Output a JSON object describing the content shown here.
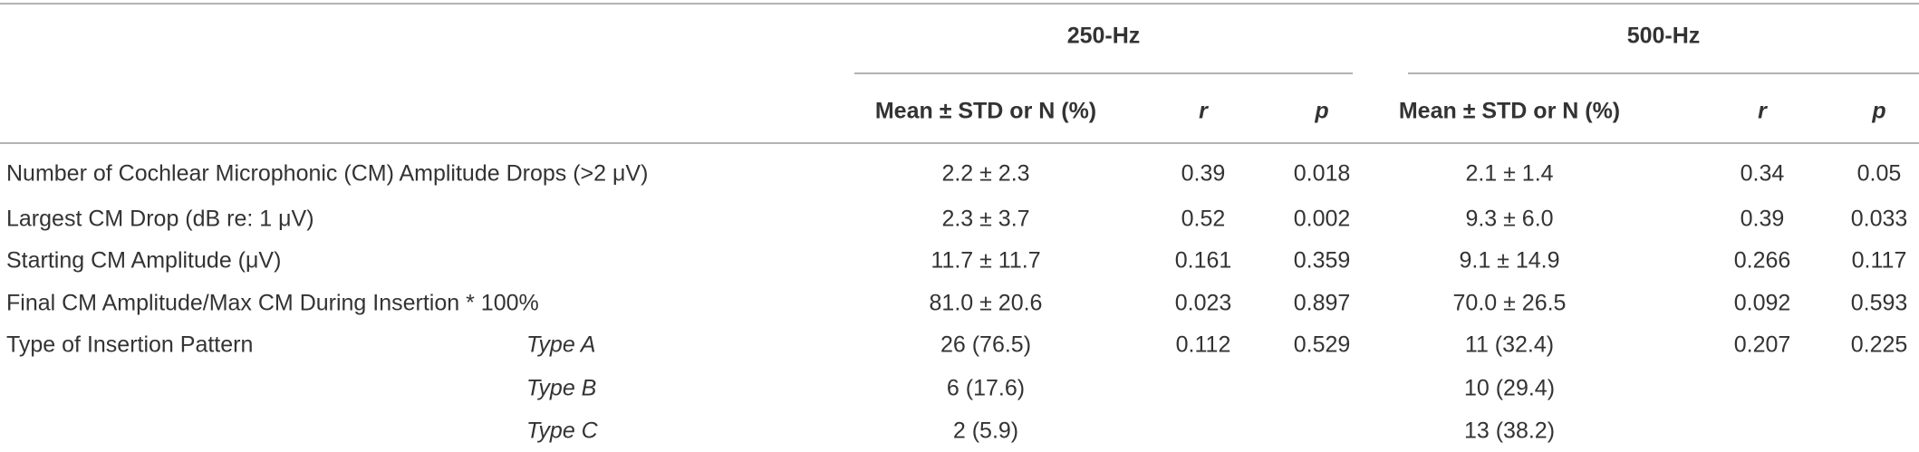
{
  "table": {
    "groups": [
      "250-Hz",
      "500-Hz"
    ],
    "columns": [
      "Mean ± STD or N (%)",
      "r",
      "p",
      "Mean ± STD or N (%)",
      "r",
      "p"
    ],
    "rows": [
      {
        "label": "Number of Cochlear Microphonic (CM) Amplitude Drops (>2 μV)",
        "sublabel": null,
        "cells": [
          "2.2 ± 2.3",
          "0.39",
          "0.018",
          "2.1 ± 1.4",
          "0.34",
          "0.05"
        ]
      },
      {
        "label": "Largest CM Drop (dB re: 1 μV)",
        "sublabel": null,
        "cells": [
          "2.3 ± 3.7",
          "0.52",
          "0.002",
          "9.3 ± 6.0",
          "0.39",
          "0.033"
        ]
      },
      {
        "label": "Starting CM Amplitude (μV)",
        "sublabel": null,
        "cells": [
          "11.7 ± 11.7",
          "0.161",
          "0.359",
          "9.1 ± 14.9",
          "0.266",
          "0.117"
        ]
      },
      {
        "label": "Final CM Amplitude/Max CM During Insertion * 100%",
        "sublabel": null,
        "cells": [
          "81.0 ± 20.6",
          "0.023",
          "0.897",
          "70.0 ± 26.5",
          "0.092",
          "0.593"
        ]
      },
      {
        "label": "Type of Insertion Pattern",
        "sublabel": "Type A",
        "cells": [
          "26 (76.5)",
          "0.112",
          "0.529",
          "11 (32.4)",
          "0.207",
          "0.225"
        ]
      },
      {
        "label": null,
        "sublabel": "Type B",
        "cells": [
          "6 (17.6)",
          null,
          null,
          "10 (29.4)",
          null,
          null
        ]
      },
      {
        "label": null,
        "sublabel": "Type C",
        "cells": [
          "2 (5.9)",
          null,
          null,
          "13 (38.2)",
          null,
          null
        ]
      }
    ]
  }
}
